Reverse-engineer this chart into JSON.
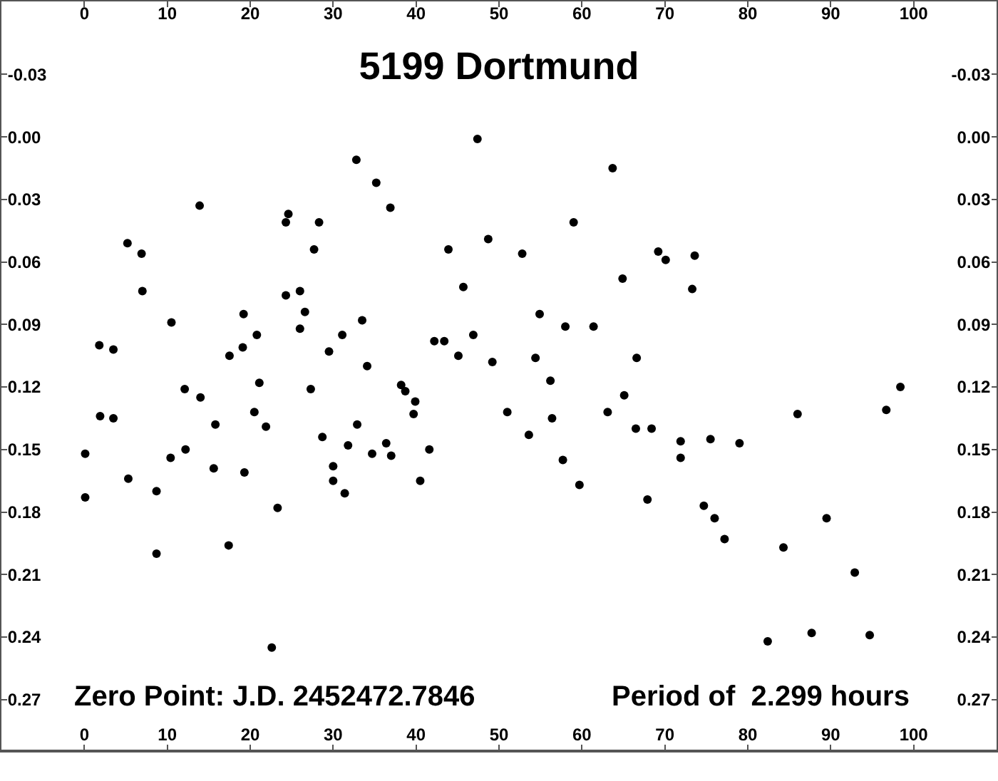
{
  "chart_data": {
    "type": "scatter",
    "title": "5199 Dortmund",
    "annotations": [
      "Zero Point: J.D. 2452472.7846",
      "Period of  2.299 hours"
    ],
    "x": [
      0.1,
      0.1,
      1.8,
      1.9,
      3.5,
      3.5,
      5.2,
      5.3,
      6.9,
      7.0,
      8.7,
      8.7,
      10.4,
      10.5,
      12.1,
      12.2,
      13.9,
      14.0,
      15.6,
      15.8,
      17.4,
      17.5,
      19.1,
      19.2,
      19.3,
      20.5,
      20.8,
      21.1,
      21.9,
      22.6,
      23.3,
      24.3,
      24.3,
      24.6,
      26.0,
      26.0,
      26.6,
      27.3,
      27.7,
      28.3,
      28.7,
      29.5,
      30.0,
      30.0,
      31.1,
      31.4,
      31.8,
      32.8,
      32.9,
      33.5,
      34.1,
      34.7,
      35.2,
      36.4,
      36.9,
      37.0,
      38.2,
      38.7,
      39.7,
      39.9,
      40.5,
      41.6,
      42.2,
      43.4,
      43.9,
      45.1,
      45.7,
      46.9,
      47.4,
      48.7,
      49.2,
      51.0,
      52.8,
      53.6,
      54.4,
      54.9,
      56.2,
      56.4,
      57.7,
      58.0,
      59.0,
      59.7,
      61.4,
      63.1,
      63.7,
      64.9,
      65.1,
      66.5,
      66.6,
      67.9,
      68.4,
      69.2,
      70.1,
      71.9,
      71.9,
      73.3,
      73.6,
      74.7,
      75.5,
      76.0,
      77.2,
      79.0,
      82.4,
      84.3,
      86.0,
      87.7,
      89.5,
      92.9,
      94.7,
      96.7,
      98.4
    ],
    "values": [
      0.152,
      0.173,
      0.1,
      0.134,
      0.102,
      0.135,
      0.051,
      0.164,
      0.056,
      0.074,
      0.17,
      0.2,
      0.154,
      0.089,
      0.121,
      0.15,
      0.033,
      0.125,
      0.159,
      0.138,
      0.196,
      0.105,
      0.101,
      0.085,
      0.161,
      0.132,
      0.095,
      0.118,
      0.139,
      0.245,
      0.178,
      0.041,
      0.076,
      0.037,
      0.074,
      0.092,
      0.084,
      0.121,
      0.054,
      0.041,
      0.144,
      0.103,
      0.158,
      0.165,
      0.095,
      0.171,
      0.148,
      0.011,
      0.138,
      0.088,
      0.11,
      0.152,
      0.022,
      0.147,
      0.034,
      0.153,
      0.119,
      0.122,
      0.133,
      0.127,
      0.165,
      0.15,
      0.098,
      0.098,
      0.054,
      0.105,
      0.072,
      0.095,
      0.001,
      0.049,
      0.108,
      0.132,
      0.056,
      0.143,
      0.106,
      0.085,
      0.117,
      0.135,
      0.155,
      0.091,
      0.041,
      0.167,
      0.091,
      0.132,
      0.015,
      0.068,
      0.124,
      0.14,
      0.106,
      0.174,
      0.14,
      0.055,
      0.059,
      0.146,
      0.154,
      0.073,
      0.057,
      0.177,
      0.145,
      0.183,
      0.193,
      0.147,
      0.242,
      0.197,
      0.133,
      0.238,
      0.183,
      0.209,
      0.239,
      0.131,
      0.12
    ],
    "color": "#000000",
    "marker": "circle",
    "grid": false,
    "xlim": [
      -10,
      110
    ],
    "xticks": [
      0,
      10,
      20,
      30,
      40,
      50,
      60,
      70,
      80,
      90,
      100
    ],
    "x2lim": [
      -10,
      110
    ],
    "x2ticks": [
      0,
      10,
      20,
      30,
      40,
      50,
      60,
      70,
      80,
      90,
      100
    ],
    "ylim": [
      0.294,
      -0.065
    ],
    "yticks": [
      -0.03,
      {
        "value": 0,
        "label": "0.00"
      },
      0.03,
      0.06,
      0.09,
      0.12,
      0.15,
      0.18,
      0.21,
      0.24,
      0.27
    ],
    "y2lim": [
      0.294,
      -0.065
    ],
    "y2ticks": [
      -0.03,
      {
        "value": 0,
        "label": "0.00"
      },
      0.03,
      0.06,
      0.09,
      0.12,
      0.15,
      0.18,
      0.21,
      0.24,
      0.27
    ]
  }
}
